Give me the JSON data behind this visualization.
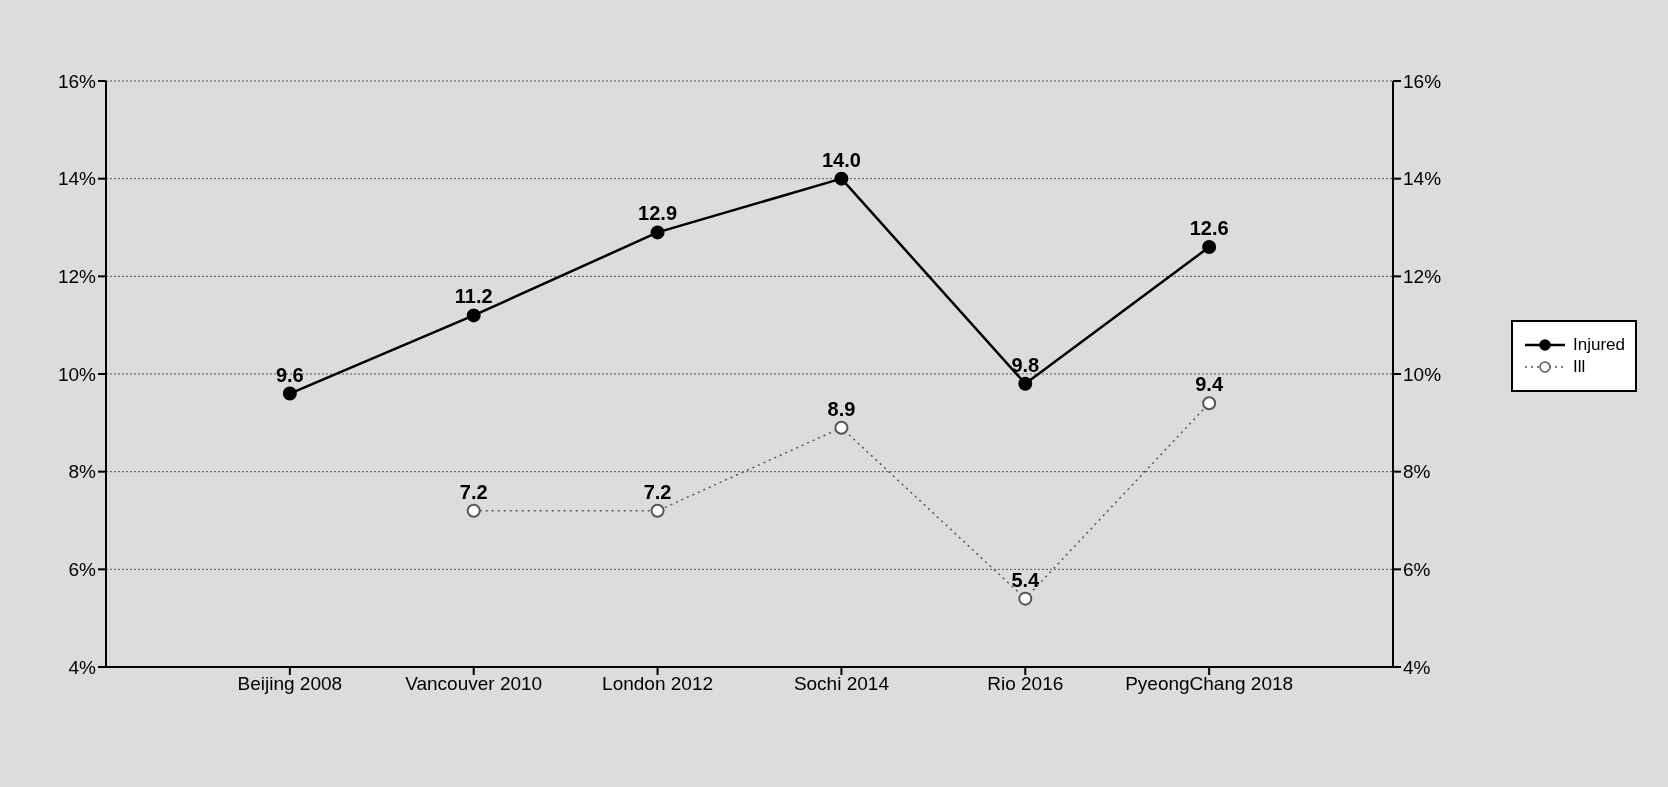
{
  "chart_data": {
    "type": "line",
    "categories": [
      "Beijing 2008",
      "Vancouver 2010",
      "London 2012",
      "Sochi 2014",
      "Rio 2016",
      "PyeongChang 2018"
    ],
    "series": [
      {
        "name": "Injured",
        "color": "#000000",
        "line_style": "solid",
        "values": [
          9.6,
          11.2,
          12.9,
          14.0,
          9.8,
          12.6
        ],
        "value_labels": [
          "9.6",
          "11.2",
          "12.9",
          "14.0",
          "9.8",
          "12.6"
        ]
      },
      {
        "name": "Ill",
        "color": "#555555",
        "line_style": "dotted",
        "values": [
          null,
          7.2,
          7.2,
          8.9,
          5.4,
          9.4
        ],
        "value_labels": [
          null,
          "7.2",
          "7.2",
          "8.9",
          "5.4",
          "9.4"
        ]
      }
    ],
    "ylim": [
      4,
      16
    ],
    "yticks": [
      {
        "value": 4,
        "label": "4%"
      },
      {
        "value": 6,
        "label": "6%"
      },
      {
        "value": 8,
        "label": "8%"
      },
      {
        "value": 10,
        "label": "10%"
      },
      {
        "value": 12,
        "label": "12%"
      },
      {
        "value": 14,
        "label": "14%"
      },
      {
        "value": 16,
        "label": "16%"
      }
    ],
    "y2lim": [
      4,
      16
    ],
    "y2ticks": [
      {
        "value": 4,
        "label": "4%"
      },
      {
        "value": 6,
        "label": "6%"
      },
      {
        "value": 8,
        "label": "8%"
      },
      {
        "value": 10,
        "label": "10%"
      },
      {
        "value": 12,
        "label": "12%"
      },
      {
        "value": 14,
        "label": "14%"
      },
      {
        "value": 16,
        "label": "16%"
      }
    ],
    "grid": "y",
    "legend": "right",
    "marker": "circle"
  }
}
